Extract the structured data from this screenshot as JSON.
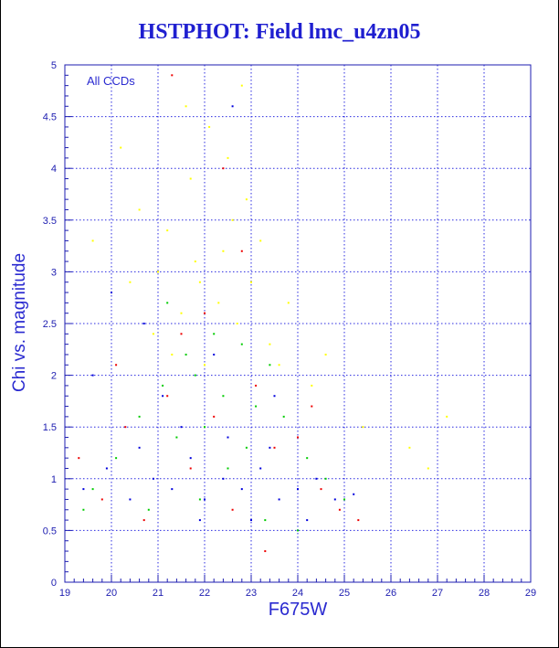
{
  "chart_data": {
    "type": "scatter",
    "title": "HSTPHOT: Field lmc_u4zn05",
    "xlabel": "F675W",
    "ylabel": "Chi vs. magnitude",
    "annotation": "All CCDs",
    "xlim": [
      19,
      29
    ],
    "ylim": [
      0,
      5
    ],
    "x_ticks": [
      "19",
      "20",
      "21",
      "22",
      "23",
      "24",
      "25",
      "26",
      "27",
      "28",
      "29"
    ],
    "y_ticks": [
      "0",
      "0.5",
      "1",
      "1.5",
      "2",
      "2.5",
      "3",
      "3.5",
      "4",
      "4.5",
      "5"
    ],
    "grid": true,
    "series": [
      {
        "color": "#ffff00",
        "points": [
          [
            20.6,
            3.6
          ],
          [
            21.2,
            3.4
          ],
          [
            21.7,
            3.9
          ],
          [
            22.1,
            4.4
          ],
          [
            22.5,
            4.1
          ],
          [
            22.9,
            3.7
          ],
          [
            23.2,
            3.3
          ],
          [
            21.9,
            2.9
          ],
          [
            22.3,
            2.7
          ],
          [
            21.5,
            2.6
          ],
          [
            20.9,
            2.4
          ],
          [
            22.7,
            2.5
          ],
          [
            23.4,
            2.3
          ],
          [
            21.3,
            2.2
          ],
          [
            22.0,
            2.1
          ],
          [
            21.8,
            3.1
          ],
          [
            22.4,
            3.2
          ],
          [
            23.0,
            2.9
          ],
          [
            20.4,
            2.9
          ],
          [
            19.6,
            3.3
          ],
          [
            21.0,
            3.0
          ],
          [
            22.6,
            3.5
          ],
          [
            23.6,
            2.1
          ],
          [
            24.3,
            1.9
          ],
          [
            25.4,
            1.5
          ],
          [
            26.4,
            1.3
          ],
          [
            27.2,
            1.6
          ],
          [
            26.8,
            1.1
          ],
          [
            21.6,
            4.6
          ],
          [
            22.8,
            4.8
          ],
          [
            20.2,
            4.2
          ],
          [
            23.8,
            2.7
          ],
          [
            24.6,
            2.2
          ]
        ]
      },
      {
        "color": "#00cc00",
        "points": [
          [
            21.1,
            1.9
          ],
          [
            21.8,
            2.0
          ],
          [
            22.4,
            1.8
          ],
          [
            23.1,
            1.7
          ],
          [
            23.7,
            1.6
          ],
          [
            22.0,
            1.5
          ],
          [
            21.4,
            1.4
          ],
          [
            22.9,
            1.3
          ],
          [
            24.2,
            1.2
          ],
          [
            20.6,
            1.6
          ],
          [
            20.1,
            1.2
          ],
          [
            19.6,
            0.9
          ],
          [
            24.6,
            1.0
          ],
          [
            25.0,
            0.8
          ],
          [
            23.3,
            0.6
          ],
          [
            22.2,
            2.4
          ],
          [
            22.8,
            2.3
          ],
          [
            21.6,
            2.2
          ],
          [
            23.4,
            2.1
          ],
          [
            22.5,
            1.1
          ],
          [
            21.9,
            0.8
          ],
          [
            20.8,
            0.7
          ],
          [
            24.0,
            0.5
          ],
          [
            19.4,
            0.7
          ],
          [
            21.2,
            2.7
          ]
        ]
      },
      {
        "color": "#ee0000",
        "points": [
          [
            19.3,
            1.2
          ],
          [
            19.8,
            0.8
          ],
          [
            20.3,
            1.5
          ],
          [
            20.7,
            0.6
          ],
          [
            21.2,
            1.8
          ],
          [
            21.7,
            1.1
          ],
          [
            22.2,
            1.6
          ],
          [
            22.6,
            0.7
          ],
          [
            23.1,
            1.9
          ],
          [
            23.5,
            1.3
          ],
          [
            24.0,
            1.4
          ],
          [
            24.5,
            0.9
          ],
          [
            24.9,
            0.7
          ],
          [
            25.3,
            0.6
          ],
          [
            23.3,
            0.3
          ],
          [
            22.4,
            4.0
          ],
          [
            21.3,
            4.9
          ],
          [
            22.8,
            3.2
          ],
          [
            21.5,
            2.4
          ],
          [
            20.1,
            2.1
          ],
          [
            24.3,
            1.7
          ],
          [
            22.0,
            2.6
          ]
        ]
      },
      {
        "color": "#0000dd",
        "points": [
          [
            19.4,
            0.9
          ],
          [
            19.9,
            1.1
          ],
          [
            20.4,
            0.8
          ],
          [
            20.9,
            1.0
          ],
          [
            21.3,
            0.9
          ],
          [
            21.7,
            1.2
          ],
          [
            22.0,
            0.8
          ],
          [
            22.4,
            1.0
          ],
          [
            22.8,
            0.9
          ],
          [
            23.2,
            1.1
          ],
          [
            23.6,
            0.8
          ],
          [
            24.0,
            0.9
          ],
          [
            24.4,
            1.0
          ],
          [
            24.8,
            0.8
          ],
          [
            25.2,
            0.85
          ],
          [
            21.5,
            1.5
          ],
          [
            22.5,
            1.4
          ],
          [
            23.4,
            1.3
          ],
          [
            20.6,
            1.3
          ],
          [
            21.9,
            0.6
          ],
          [
            23.0,
            0.6
          ],
          [
            24.2,
            0.6
          ],
          [
            22.6,
            4.6
          ],
          [
            20.7,
            2.5
          ],
          [
            22.2,
            2.2
          ],
          [
            23.5,
            1.8
          ],
          [
            21.1,
            1.8
          ],
          [
            19.6,
            2.0
          ],
          [
            20.0,
            2.8
          ]
        ]
      }
    ]
  }
}
